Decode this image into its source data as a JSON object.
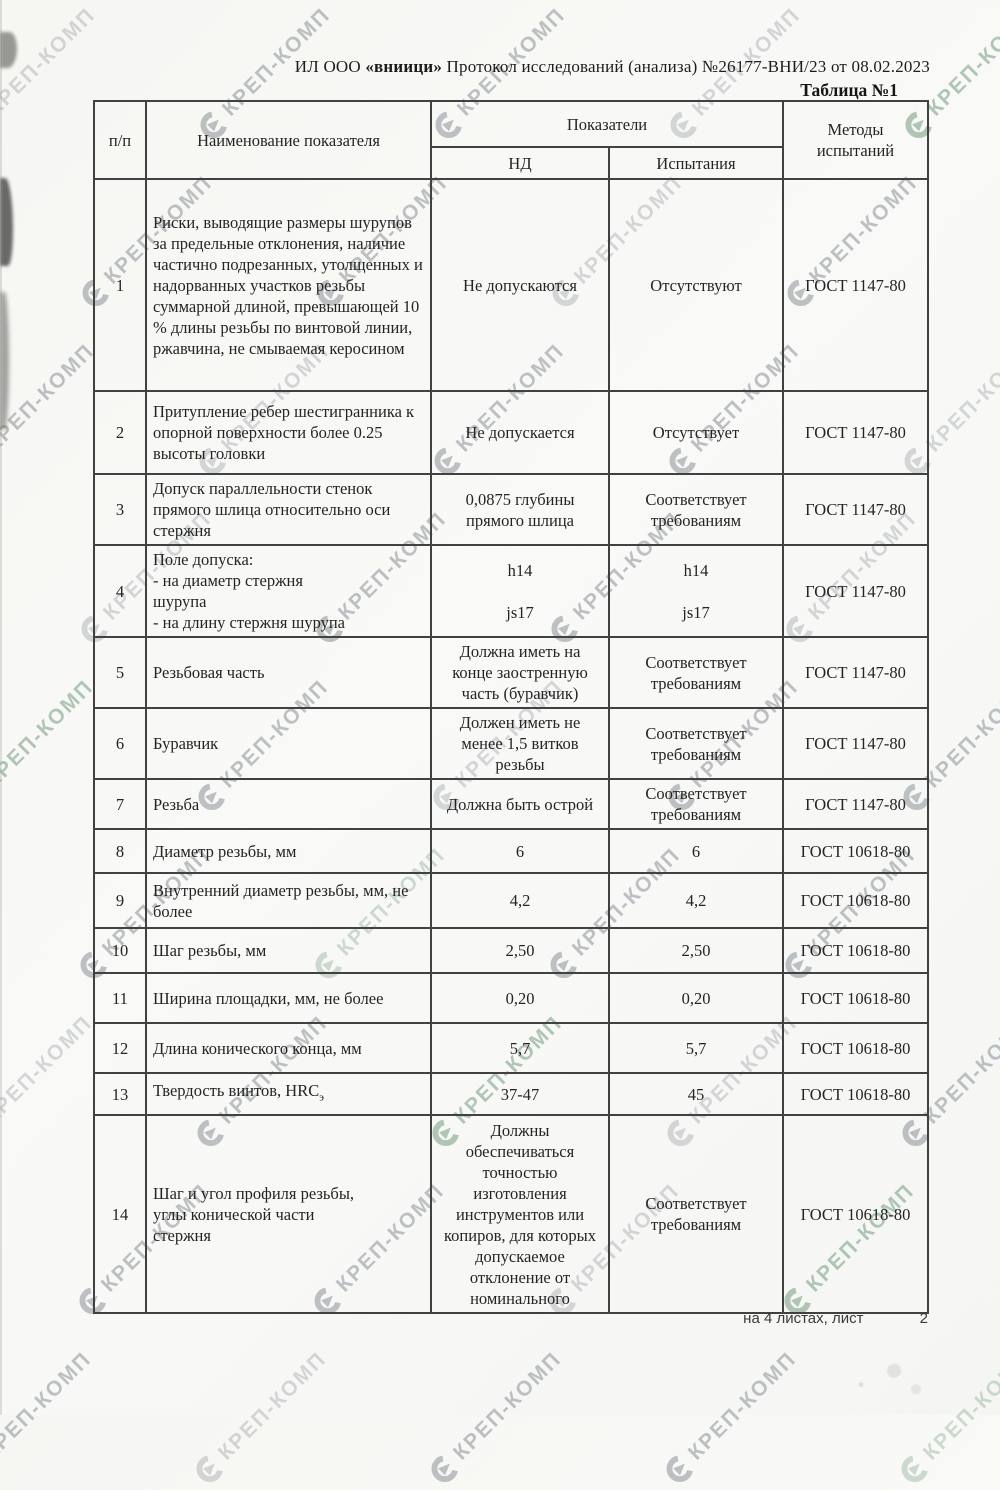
{
  "page": {
    "header": {
      "prefix": "ИЛ ООО",
      "org": "«вниици»",
      "rest": "Протокол исследований (анализа)  №26177-ВНИ/23 от  08.02.2023"
    },
    "table_caption": "Таблица №1",
    "footer": {
      "sheets_label": "на 4  листах, лист",
      "page_number": "2"
    },
    "watermark": {
      "text": "КРЕП-КОМП",
      "gray": "#8a9198",
      "green": "#749d7f"
    }
  },
  "table": {
    "headers": {
      "num": "п/п",
      "name": "Наименование показателя",
      "group": "Показатели",
      "nd": "НД",
      "tests": "Испытания",
      "methods": "Методы\nиспытаний"
    },
    "rows": [
      {
        "num": "1",
        "name": "Риски, выводящие размеры шурупов за предельные отклонения, наличие частично подрезанных, утолщенных и надорванных участков резьбы суммарной длиной, превышающей 10 % длины резьбы по винтовой линии, ржавчина, не смываемая керосином",
        "nd": "Не допускаются",
        "tests": "Отсутствуют",
        "method": "ГОСТ 1147-80"
      },
      {
        "num": "2",
        "name": "Притупление ребер шестигранника к опорной поверхности более 0.25 высоты головки",
        "nd": "Не допускается",
        "tests": "Отсутствует",
        "method": "ГОСТ 1147-80"
      },
      {
        "num": "3",
        "name": "Допуск параллельности стенок прямого шлица относительно оси стержня",
        "nd": "0,0875 глубины\nпрямого шлица",
        "tests": "Соответствует\nтребованиям",
        "method": "ГОСТ 1147-80"
      },
      {
        "num": "4",
        "name": "Поле допуска:\n- на диаметр стержня\nшурупа\n- на длину стержня шурупа",
        "nd": "h14\n\njs17",
        "tests": "h14\n\njs17",
        "method": "ГОСТ 1147-80"
      },
      {
        "num": "5",
        "name": "Резьбовая часть",
        "nd": "Должна иметь на\nконце заостренную\nчасть (буравчик)",
        "tests": "Соответствует\nтребованиям",
        "method": "ГОСТ 1147-80"
      },
      {
        "num": "6",
        "name": "Буравчик",
        "nd": "Должен иметь не\nменее 1,5 витков\nрезьбы",
        "tests": "Соответствует\nтребованиям",
        "method": "ГОСТ 1147-80"
      },
      {
        "num": "7",
        "name": "Резьба",
        "nd": "Должна быть острой",
        "tests": "Соответствует\nтребованиям",
        "method": "ГОСТ 1147-80"
      },
      {
        "num": "8",
        "name": "Диаметр резьбы, мм",
        "nd": "6",
        "tests": "6",
        "method": "ГОСТ 10618-80"
      },
      {
        "num": "9",
        "name": "Внутренний диаметр резьбы, мм, не более",
        "nd": "4,2",
        "tests": "4,2",
        "method": "ГОСТ 10618-80"
      },
      {
        "num": "10",
        "name": "Шаг резьбы, мм",
        "nd": "2,50",
        "tests": "2,50",
        "method": "ГОСТ 10618-80"
      },
      {
        "num": "11",
        "name": "Ширина площадки, мм, не более",
        "nd": "0,20",
        "tests": "0,20",
        "method": "ГОСТ 10618-80"
      },
      {
        "num": "12",
        "name": "Длина конического конца, мм",
        "nd": "5,7",
        "tests": "5,7",
        "method": "ГОСТ 10618-80"
      },
      {
        "num": "13",
        "name": "Твердость винтов, HRC",
        "name_sub": "э",
        "nd": "37-47",
        "tests": "45",
        "method": "ГОСТ 10618-80"
      },
      {
        "num": "14",
        "name": "Шаг и угол профиля резьбы,\nуглы конической части\nстержня",
        "nd": "Должны\nобеспечиваться\nточностью\nизготовления\nинструментов или\nкопиров, для которых\nдопускаемое\nотклонение от\nноминального",
        "tests": "Соответствует\nтребованиям",
        "method": "ГОСТ 10618-80"
      }
    ]
  }
}
